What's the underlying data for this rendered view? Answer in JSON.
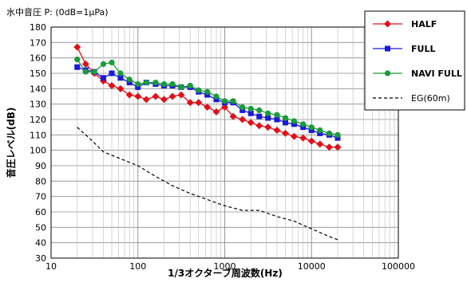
{
  "chart_data": {
    "type": "line",
    "title": "水中音圧 P: (0dB=1μPa)",
    "xlabel": "1/3オクターブ周波数(Hz)",
    "ylabel": "音圧レベル(dB)",
    "xscale": "log",
    "xlim": [
      10,
      100000
    ],
    "ylim": [
      30,
      180
    ],
    "yticks": [
      30,
      40,
      50,
      60,
      70,
      80,
      90,
      100,
      110,
      120,
      130,
      140,
      150,
      160,
      170,
      180
    ],
    "xticks": [
      10,
      100,
      1000,
      10000,
      100000
    ],
    "grid": true,
    "legend_position": "top-right",
    "x": [
      20,
      25,
      31.5,
      40,
      50,
      63,
      80,
      100,
      125,
      160,
      200,
      250,
      315,
      400,
      500,
      630,
      800,
      1000,
      1250,
      1600,
      2000,
      2500,
      3150,
      4000,
      5000,
      6300,
      8000,
      10000,
      12500,
      16000,
      20000
    ],
    "series": [
      {
        "name": "HALF",
        "color": "#e0101a",
        "marker": "diamond",
        "line": "solid",
        "values": [
          167,
          156,
          150,
          145,
          142,
          140,
          136,
          135,
          133,
          135,
          133,
          135,
          136,
          131,
          131,
          128,
          125,
          128,
          122,
          120,
          118,
          116,
          115,
          113,
          111,
          109,
          108,
          106,
          104,
          102,
          102
        ]
      },
      {
        "name": "FULL",
        "color": "#1a1adb",
        "marker": "square",
        "line": "solid",
        "values": [
          154,
          152,
          151,
          147,
          150,
          147,
          144,
          141,
          144,
          143,
          142,
          142,
          141,
          141,
          138,
          136,
          133,
          131,
          131,
          126,
          124,
          122,
          121,
          120,
          118,
          117,
          115,
          113,
          111,
          110,
          108
        ]
      },
      {
        "name": "NAVI FULL",
        "color": "#1a9b3a",
        "marker": "circle",
        "line": "solid",
        "values": [
          159,
          151,
          151,
          156,
          157,
          150,
          146,
          143,
          144,
          144,
          143,
          143,
          141,
          142,
          139,
          138,
          135,
          132,
          132,
          128,
          127,
          126,
          124,
          123,
          121,
          119,
          117,
          115,
          113,
          111,
          110
        ]
      },
      {
        "name": "EG(60m)",
        "color": "#000000",
        "marker": "none",
        "line": "dashed",
        "x": [
          20,
          30,
          40,
          60,
          100,
          160,
          250,
          400,
          630,
          1000,
          1600,
          2500,
          4000,
          6300,
          10000,
          16000,
          20000
        ],
        "values": [
          115,
          106,
          99,
          95,
          90,
          83,
          77,
          72,
          68,
          64,
          61,
          61,
          57,
          54,
          49,
          44,
          42
        ]
      }
    ]
  }
}
